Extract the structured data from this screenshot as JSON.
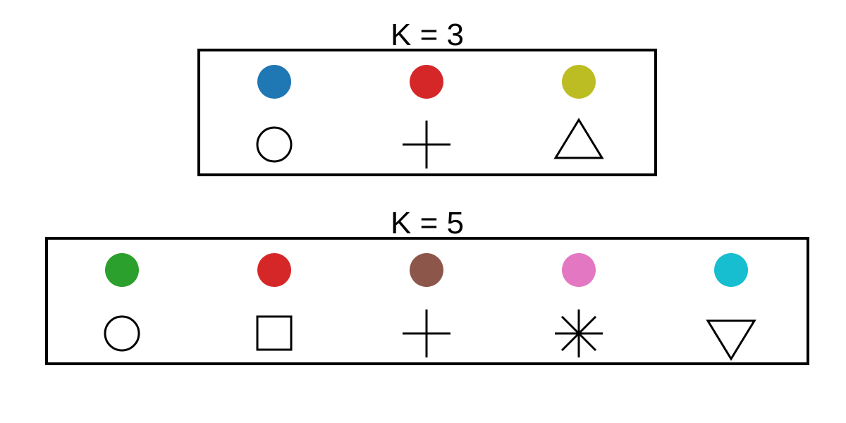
{
  "groups": [
    {
      "title": "K = 3",
      "items": [
        {
          "color": "#1f77b4",
          "marker": "circle-icon"
        },
        {
          "color": "#d62728",
          "marker": "plus-icon"
        },
        {
          "color": "#bcbd22",
          "marker": "triangle-up-icon"
        }
      ]
    },
    {
      "title": "K = 5",
      "items": [
        {
          "color": "#2ca02c",
          "marker": "circle-icon"
        },
        {
          "color": "#d62728",
          "marker": "square-icon"
        },
        {
          "color": "#8c564b",
          "marker": "plus-icon"
        },
        {
          "color": "#e377c2",
          "marker": "asterisk-icon"
        },
        {
          "color": "#17becf",
          "marker": "triangle-down-icon"
        }
      ]
    }
  ]
}
